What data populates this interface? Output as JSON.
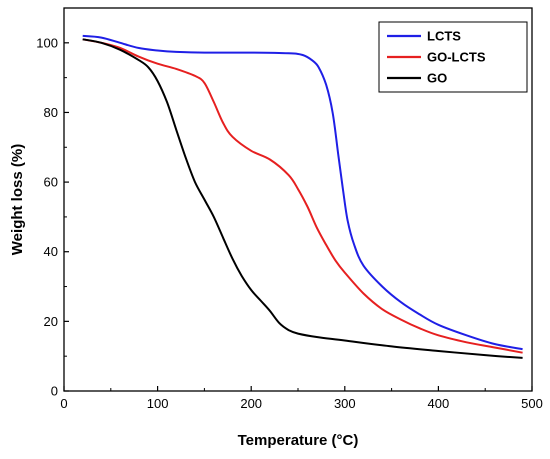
{
  "chart_data": {
    "type": "line",
    "xlabel": "Temperature (°C)",
    "ylabel": "Weight loss (%)",
    "xlim": [
      0,
      500
    ],
    "ylim": [
      0,
      110
    ],
    "xticks": [
      0,
      100,
      200,
      300,
      400,
      500
    ],
    "yticks": [
      0,
      20,
      40,
      60,
      80,
      100
    ],
    "grid": false,
    "legend_position": "top-right",
    "series": [
      {
        "name": "LCTS",
        "color": "#1f1fe6",
        "x": [
          20,
          40,
          60,
          80,
          100,
          120,
          150,
          200,
          240,
          255,
          265,
          272,
          280,
          287,
          293,
          298,
          303,
          310,
          320,
          340,
          360,
          380,
          400,
          430,
          460,
          490
        ],
        "y": [
          102,
          101.5,
          100,
          98.5,
          97.8,
          97.4,
          97.2,
          97.2,
          97,
          96.5,
          95,
          93,
          88,
          80,
          68,
          58,
          49,
          42,
          36,
          30,
          25.5,
          22,
          19,
          16,
          13.5,
          12
        ]
      },
      {
        "name": "GO-LCTS",
        "color": "#e62020",
        "x": [
          20,
          40,
          60,
          80,
          100,
          120,
          140,
          150,
          160,
          170,
          180,
          200,
          220,
          240,
          250,
          260,
          270,
          280,
          290,
          300,
          320,
          340,
          360,
          380,
          400,
          430,
          460,
          490
        ],
        "y": [
          101,
          100,
          98.5,
          96,
          94,
          92.5,
          90.5,
          88.5,
          83,
          77,
          73,
          69,
          66.5,
          62,
          58,
          53,
          47,
          42,
          37.5,
          34,
          28,
          23.5,
          20.5,
          18,
          16,
          14,
          12.5,
          11
        ]
      },
      {
        "name": "GO",
        "color": "#000000",
        "x": [
          20,
          40,
          60,
          80,
          90,
          100,
          110,
          120,
          130,
          140,
          150,
          160,
          170,
          180,
          190,
          200,
          210,
          220,
          230,
          240,
          250,
          270,
          300,
          350,
          400,
          450,
          490
        ],
        "y": [
          101,
          100,
          98,
          95,
          93,
          89,
          83,
          75,
          67,
          60,
          55,
          50,
          44,
          38,
          33,
          29,
          26,
          23,
          19.5,
          17.5,
          16.5,
          15.5,
          14.5,
          12.8,
          11.5,
          10.3,
          9.5
        ]
      }
    ]
  }
}
